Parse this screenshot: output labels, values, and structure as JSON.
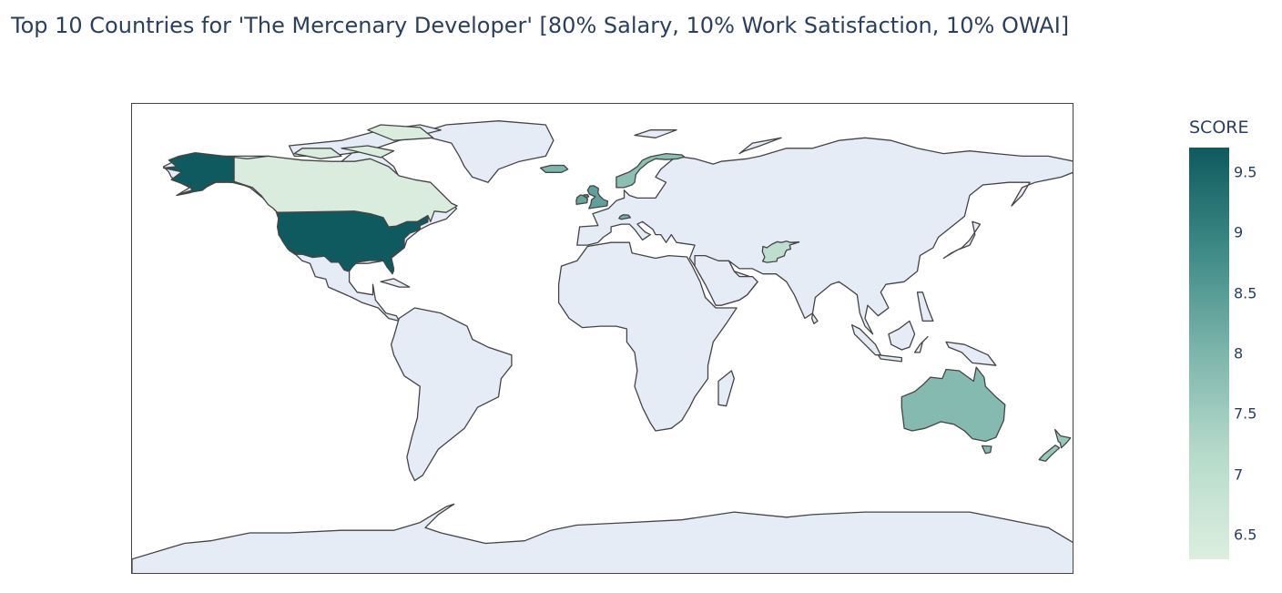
{
  "title": "Top 10 Countries for 'The Mercenary Developer' [80% Salary, 10% Work Satisfaction, 10% OWAI]",
  "colorbar": {
    "title": "SCORE",
    "min": 6.3,
    "max": 9.7,
    "ticks": [
      {
        "value": 9.5,
        "label": "9.5"
      },
      {
        "value": 9,
        "label": "9"
      },
      {
        "value": 8.5,
        "label": "8.5"
      },
      {
        "value": 8,
        "label": "8"
      },
      {
        "value": 7.5,
        "label": "7.5"
      },
      {
        "value": 7,
        "label": "7"
      },
      {
        "value": 6.5,
        "label": "6.5"
      }
    ],
    "colorscale": [
      "#0f5a5e",
      "#3e8a86",
      "#7db6ac",
      "#b7dbcb",
      "#ddeedf"
    ]
  },
  "map_style": {
    "land_color": "#e5ecf6",
    "ocean_color": "#ffffff",
    "border_color": "#444444"
  },
  "chart_data": {
    "type": "choropleth",
    "title": "Top 10 Countries for 'The Mercenary Developer' [80% Salary, 10% Work Satisfaction, 10% OWAI]",
    "colorbar_title": "SCORE",
    "colorbar_range": [
      6.3,
      9.7
    ],
    "projection": "equirectangular",
    "series": [
      {
        "country": "United States",
        "value": 9.7
      },
      {
        "country": "Australia",
        "value": 7.9
      },
      {
        "country": "Iceland",
        "value": 8.0
      },
      {
        "country": "Norway",
        "value": 7.8
      },
      {
        "country": "United Kingdom",
        "value": 8.4
      },
      {
        "country": "Ireland",
        "value": 8.3
      },
      {
        "country": "Switzerland",
        "value": 8.1
      },
      {
        "country": "New Zealand",
        "value": 7.6
      },
      {
        "country": "Afghanistan",
        "value": 7.0
      },
      {
        "country": "Canada",
        "value": 6.4
      }
    ]
  }
}
